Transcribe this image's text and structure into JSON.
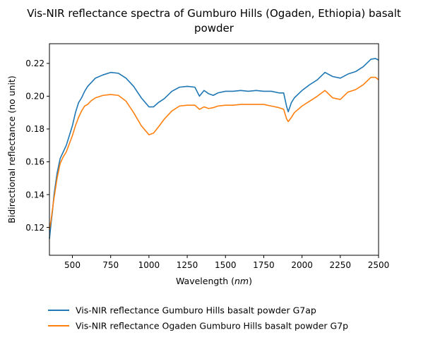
{
  "chart_data": {
    "type": "line",
    "title_line1": "Vis-NIR reflectance spectra of Gumburo Hills (Ogaden, Ethiopia) basalt",
    "title_line2": "powder",
    "xlabel_prefix": "Wavelength (",
    "xlabel_unit": "nm",
    "xlabel_suffix": ")",
    "ylabel": "Bidirectional reflectance (no unit)",
    "xlim": [
      350,
      2500
    ],
    "ylim": [
      0.103,
      0.232
    ],
    "x_ticks": [
      500,
      750,
      1000,
      1250,
      1500,
      1750,
      2000,
      2250,
      2500
    ],
    "y_ticks": [
      0.12,
      0.14,
      0.16,
      0.18,
      0.2,
      0.22
    ],
    "y_tick_labels": [
      "0.12",
      "0.14",
      "0.16",
      "0.18",
      "0.20",
      "0.22"
    ],
    "legend_position": "below-plot",
    "series": [
      {
        "name": "Vis-NIR reflectance Gumburo Hills basalt powder G7ap",
        "color": "#1f77b4",
        "x": [
          350,
          360,
          370,
          380,
          400,
          420,
          440,
          460,
          480,
          500,
          520,
          540,
          560,
          580,
          600,
          620,
          650,
          700,
          750,
          800,
          850,
          900,
          950,
          1000,
          1030,
          1060,
          1100,
          1150,
          1200,
          1250,
          1300,
          1330,
          1360,
          1390,
          1420,
          1450,
          1500,
          1550,
          1600,
          1650,
          1700,
          1750,
          1800,
          1850,
          1880,
          1900,
          1910,
          1930,
          1950,
          2000,
          2050,
          2100,
          2150,
          2200,
          2250,
          2300,
          2350,
          2400,
          2450,
          2480,
          2500
        ],
        "y": [
          0.113,
          0.122,
          0.13,
          0.14,
          0.153,
          0.162,
          0.166,
          0.17,
          0.176,
          0.182,
          0.19,
          0.196,
          0.199,
          0.203,
          0.206,
          0.208,
          0.211,
          0.213,
          0.2145,
          0.214,
          0.211,
          0.206,
          0.199,
          0.1935,
          0.1935,
          0.196,
          0.1985,
          0.203,
          0.2055,
          0.206,
          0.2055,
          0.2,
          0.2035,
          0.2015,
          0.2005,
          0.202,
          0.203,
          0.203,
          0.2035,
          0.203,
          0.2035,
          0.203,
          0.203,
          0.202,
          0.202,
          0.1935,
          0.1905,
          0.196,
          0.199,
          0.2035,
          0.207,
          0.21,
          0.2145,
          0.212,
          0.211,
          0.2135,
          0.215,
          0.218,
          0.2225,
          0.223,
          0.222
        ]
      },
      {
        "name": "Vis-NIR reflectance Ogaden Gumburo Hills basalt powder G7p",
        "color": "#ff7f0e",
        "x": [
          350,
          360,
          370,
          380,
          400,
          420,
          440,
          460,
          480,
          500,
          520,
          540,
          560,
          580,
          600,
          620,
          650,
          700,
          750,
          800,
          850,
          900,
          950,
          1000,
          1030,
          1060,
          1100,
          1150,
          1200,
          1250,
          1300,
          1330,
          1360,
          1390,
          1420,
          1450,
          1500,
          1550,
          1600,
          1650,
          1700,
          1750,
          1800,
          1850,
          1880,
          1900,
          1910,
          1930,
          1950,
          2000,
          2050,
          2100,
          2150,
          2200,
          2250,
          2300,
          2350,
          2400,
          2450,
          2480,
          2500
        ],
        "y": [
          0.119,
          0.124,
          0.131,
          0.138,
          0.15,
          0.159,
          0.163,
          0.166,
          0.171,
          0.176,
          0.182,
          0.187,
          0.191,
          0.194,
          0.195,
          0.197,
          0.199,
          0.2005,
          0.201,
          0.2005,
          0.197,
          0.19,
          0.182,
          0.1765,
          0.1775,
          0.181,
          0.186,
          0.191,
          0.194,
          0.1945,
          0.1945,
          0.192,
          0.1935,
          0.1925,
          0.193,
          0.194,
          0.1945,
          0.1945,
          0.195,
          0.195,
          0.195,
          0.195,
          0.194,
          0.193,
          0.192,
          0.186,
          0.1845,
          0.187,
          0.19,
          0.194,
          0.197,
          0.2,
          0.2035,
          0.199,
          0.198,
          0.2025,
          0.204,
          0.207,
          0.2115,
          0.2115,
          0.21
        ]
      }
    ]
  }
}
